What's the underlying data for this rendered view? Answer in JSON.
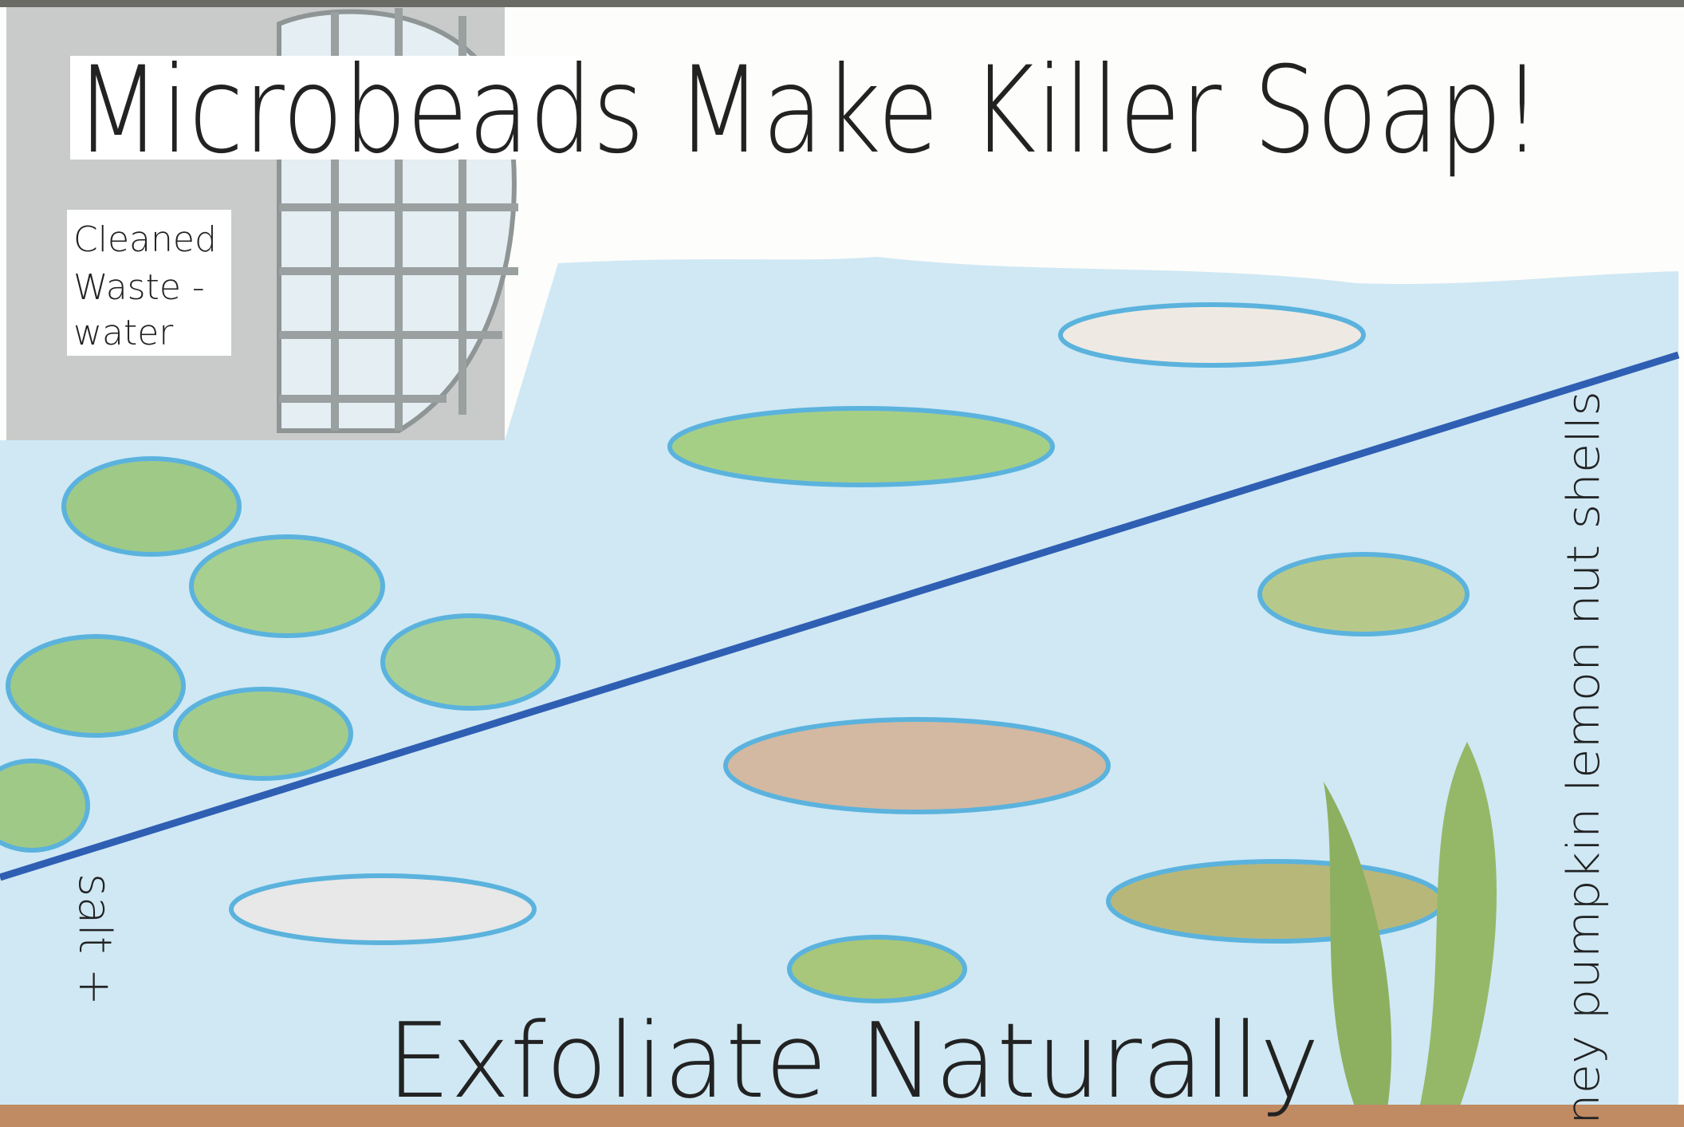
{
  "title": "Microbeads Make Killer Soap!",
  "sign": {
    "lines": [
      "Cleaned",
      "Waste -",
      "water"
    ]
  },
  "subtitle": "Exfoliate Naturally",
  "side_left": "salt +",
  "side_right": "ney pumpkin lemon nut shells"
}
